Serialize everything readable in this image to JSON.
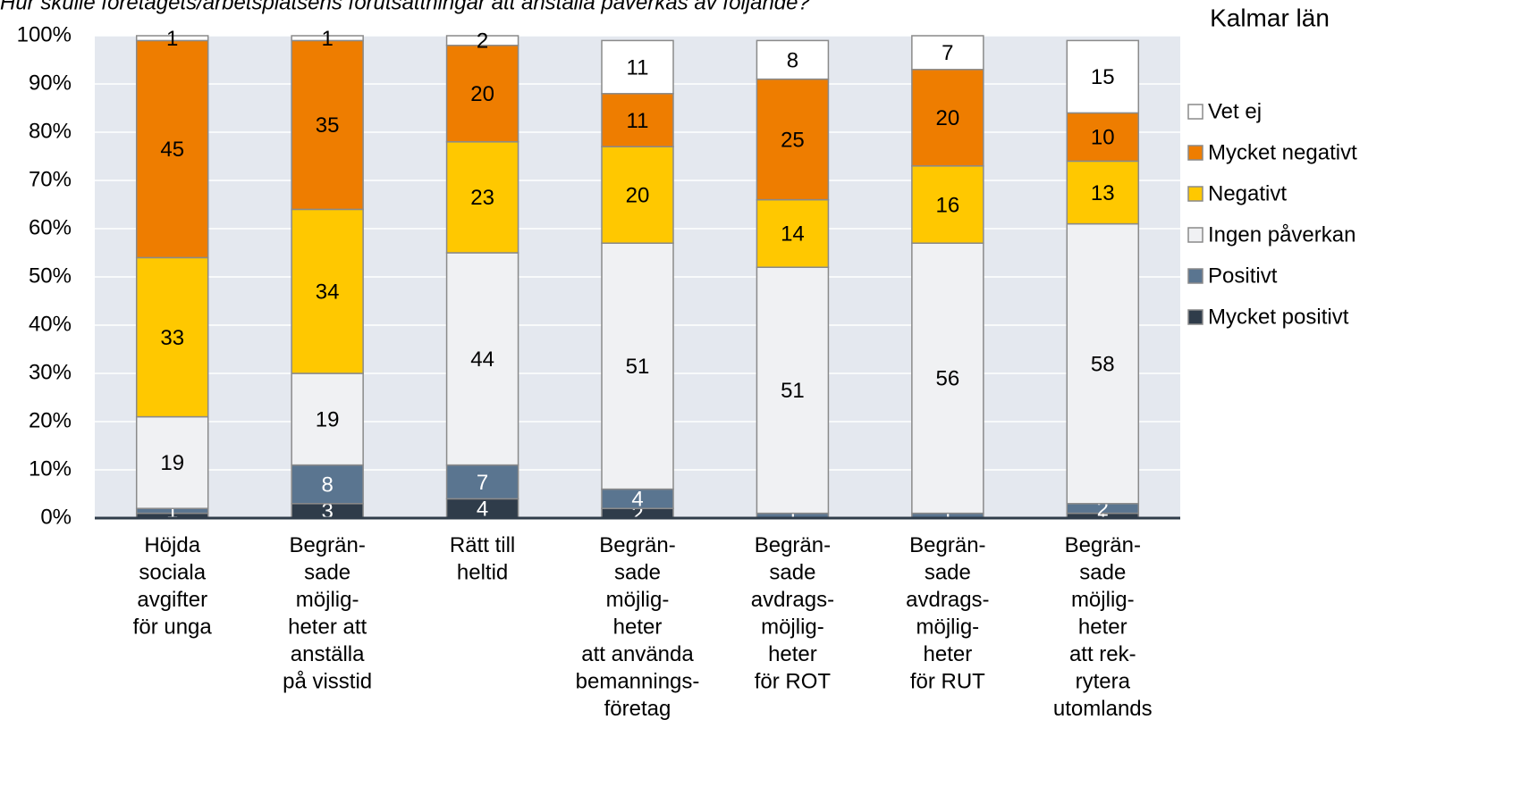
{
  "chart_data": {
    "type": "stacked_bar",
    "title": "Hur skulle företagets/arbetsplatsens förutsättningar att anställa påverkas av följande?",
    "subtitle": "Kalmar län",
    "categories": [
      [
        "Höjda",
        "sociala",
        "avgifter",
        "för unga"
      ],
      [
        "Begrän-",
        "sade",
        "möjlig-",
        "heter att",
        "anställa",
        "på visstid"
      ],
      [
        "Rätt till",
        "heltid"
      ],
      [
        "Begrän-",
        "sade",
        "möjlig-",
        "heter",
        "att använda",
        "bemannings-",
        "företag"
      ],
      [
        "Begrän-",
        "sade",
        "avdrags-",
        "möjlig-",
        "heter",
        "för ROT"
      ],
      [
        "Begrän-",
        "sade",
        "avdrags-",
        "möjlig-",
        "heter",
        "för RUT"
      ],
      [
        "Begrän-",
        "sade",
        "möjlig-",
        "heter",
        "att rek-",
        "rytera",
        "utomlands"
      ]
    ],
    "series": [
      {
        "name": "Mycket positivt",
        "color": "#2f3c4a",
        "label_color": "#ffffff",
        "values": [
          1,
          3,
          4,
          2,
          0,
          0,
          1
        ]
      },
      {
        "name": "Positivt",
        "color": "#5a7590",
        "label_color": "#ffffff",
        "values": [
          1,
          8,
          7,
          4,
          1,
          1,
          2
        ]
      },
      {
        "name": "Ingen påverkan",
        "color": "#f0f1f3",
        "label_color": "#000000",
        "values": [
          19,
          19,
          44,
          51,
          51,
          56,
          58
        ]
      },
      {
        "name": "Negativt",
        "color": "#ffc800",
        "label_color": "#000000",
        "values": [
          33,
          34,
          23,
          20,
          14,
          16,
          13
        ]
      },
      {
        "name": "Mycket negativt",
        "color": "#ee7d00",
        "label_color": "#000000",
        "values": [
          45,
          35,
          20,
          11,
          25,
          20,
          10
        ]
      },
      {
        "name": "Vet ej",
        "color": "#ffffff",
        "label_color": "#000000",
        "values": [
          1,
          1,
          2,
          11,
          8,
          7,
          15
        ]
      }
    ],
    "ylim": [
      0,
      100
    ],
    "yticks": [
      {
        "value": 0,
        "label": "0%"
      },
      {
        "value": 10,
        "label": "10%"
      },
      {
        "value": 20,
        "label": "20%"
      },
      {
        "value": 30,
        "label": "30%"
      },
      {
        "value": 40,
        "label": "40%"
      },
      {
        "value": 50,
        "label": "50%"
      },
      {
        "value": 60,
        "label": "60%"
      },
      {
        "value": 70,
        "label": "70%"
      },
      {
        "value": 80,
        "label": "80%"
      },
      {
        "value": 90,
        "label": "90%"
      },
      {
        "value": 100,
        "label": "100%"
      }
    ],
    "grid": true,
    "legend": "right"
  }
}
